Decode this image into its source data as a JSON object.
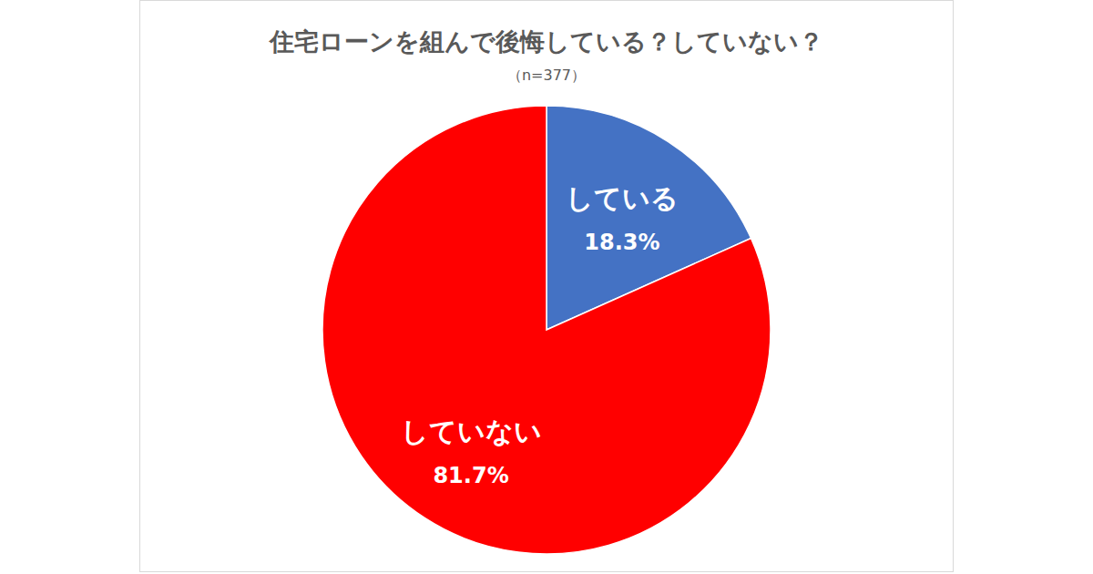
{
  "chart_data": {
    "type": "pie",
    "title": "住宅ローンを組んで後悔している？していない？",
    "subtitle": "（n=377）",
    "categories": [
      "している",
      "していない"
    ],
    "values": [
      18.3,
      81.7
    ],
    "value_labels": [
      "18.3%",
      "81.7%"
    ],
    "colors": [
      "#4472c4",
      "#ff0000"
    ],
    "data_labels": true
  }
}
